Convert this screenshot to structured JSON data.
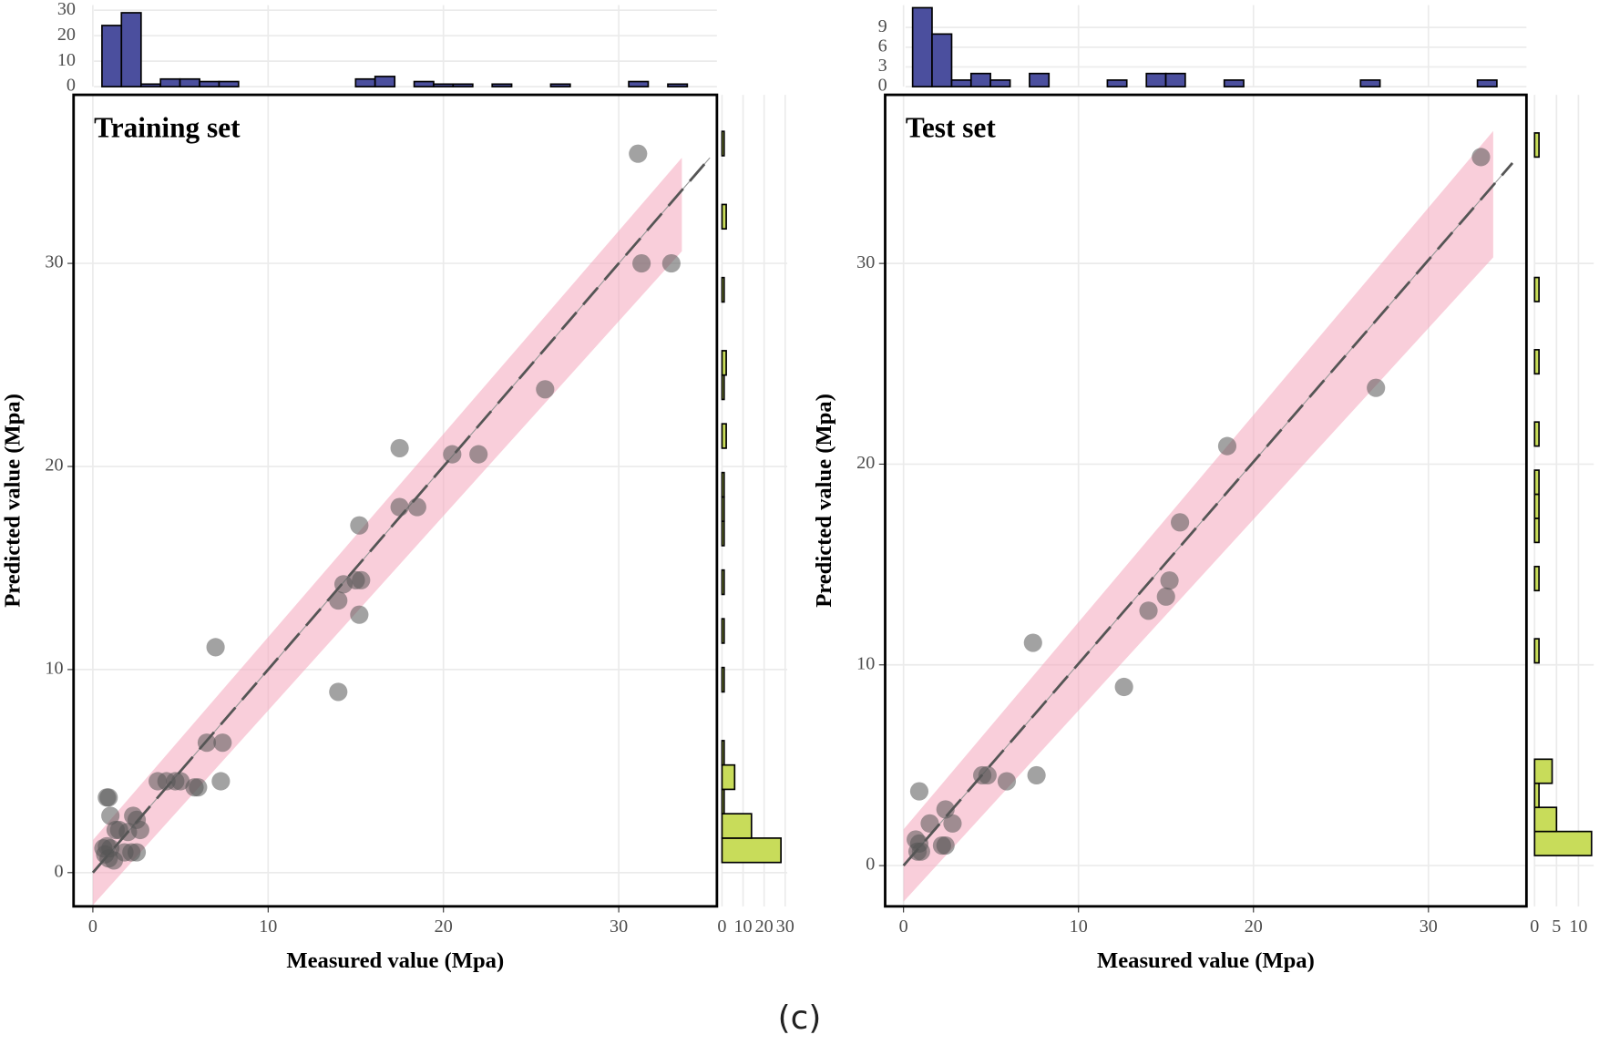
{
  "chart_data": [
    {
      "type": "scatter",
      "title": "Training set",
      "x_label": "Measured value (Mpa)",
      "y_label": "Predicted value (Mpa)",
      "point_color": "#555555",
      "x": [
        31.1,
        31.3,
        33,
        25.8,
        17.5,
        20.5,
        22,
        17.5,
        18.5,
        15.2,
        14.3,
        15,
        15.3,
        14,
        15.2,
        14,
        7,
        6.5,
        7.4,
        3.7,
        4.2,
        4.7,
        5,
        5.8,
        6,
        7.3,
        0.8,
        0.9,
        1,
        2.3,
        2.5,
        2.7,
        1.5,
        1.3,
        2,
        0.8,
        1,
        0.7,
        1.2,
        0.9,
        1.8,
        2.2,
        2.5,
        0.6
      ],
      "y": [
        35.4,
        30,
        30,
        23.8,
        20.9,
        20.6,
        20.6,
        18,
        18,
        17.1,
        14.2,
        14.4,
        14.4,
        13.4,
        12.7,
        8.9,
        11.1,
        6.4,
        6.4,
        4.5,
        4.5,
        4.5,
        4.5,
        4.2,
        4.2,
        4.5,
        3.7,
        3.7,
        2.8,
        2.8,
        2.6,
        2.1,
        2.1,
        2.1,
        2,
        1.3,
        1.2,
        0.9,
        0.6,
        0.7,
        1,
        1,
        1,
        1.2
      ],
      "xlim": [
        -1.1,
        35.6
      ],
      "ylim": [
        -1.66,
        38.3
      ],
      "xticks": [
        0,
        10,
        20,
        30
      ],
      "yticks": [
        0,
        10,
        20,
        30
      ],
      "grid": true,
      "band": {
        "x": [
          0,
          33.6
        ],
        "lower": [
          -1.6,
          30.6
        ],
        "upper": [
          1.6,
          35.2
        ],
        "color": "#f4a6bb"
      },
      "fit_line": {
        "x": [
          0,
          35.2
        ],
        "y": [
          0,
          35.2
        ]
      },
      "top_histogram": {
        "color": "#4b4f9e",
        "ylim": [
          0,
          32
        ],
        "yticks": [
          0,
          10,
          20,
          30
        ],
        "bins": [
          0.52,
          1.63,
          2.75,
          3.86,
          4.97,
          6.09,
          7.2,
          8.31,
          9.42,
          10.54,
          11.65,
          12.76,
          13.88,
          14.99,
          16.1,
          17.22,
          18.33,
          19.44,
          20.55,
          21.67,
          22.78,
          23.89,
          25.01,
          26.12,
          27.23,
          28.35,
          29.46,
          30.57,
          31.68,
          32.8,
          33.91
        ],
        "counts": [
          24,
          29,
          1,
          3,
          3,
          2,
          2,
          0,
          0,
          0,
          0,
          0,
          0,
          3,
          4,
          0,
          2,
          1,
          1,
          0,
          1,
          0,
          0,
          1,
          0,
          0,
          0,
          2,
          0,
          1
        ]
      },
      "right_histogram": {
        "color": "#c8dc5a",
        "xlim": [
          0,
          31
        ],
        "xticks": [
          0,
          10,
          20,
          30
        ],
        "bins": [
          0.5,
          1.7,
          2.9,
          4.1,
          5.3,
          6.5,
          7.7,
          8.9,
          10.1,
          11.3,
          12.5,
          13.7,
          14.9,
          16.1,
          17.3,
          18.5,
          19.7,
          20.9,
          22.1,
          23.3,
          24.5,
          25.7,
          26.9,
          28.1,
          29.3,
          30.5,
          31.7,
          32.9,
          34.1,
          35.3,
          36.5
        ],
        "counts": [
          28,
          14,
          1,
          6,
          1,
          0,
          0,
          1,
          0,
          1,
          0,
          1,
          0,
          1,
          1,
          1,
          0,
          2,
          0,
          1,
          2,
          0,
          0,
          1,
          0,
          0,
          2,
          0,
          0,
          1
        ]
      }
    },
    {
      "type": "scatter",
      "title": "Test set",
      "x_label": "Measured value (Mpa)",
      "y_label": "Predicted value (Mpa)",
      "point_color": "#555555",
      "x": [
        33,
        27,
        18.5,
        15.8,
        15.2,
        15,
        14,
        7.4,
        12.6,
        4.5,
        4.8,
        5.9,
        7.6,
        0.9,
        2.4,
        2.8,
        1.5,
        2.2,
        2.4,
        0.7,
        0.8,
        1,
        0.9
      ],
      "y": [
        35.3,
        23.8,
        20.9,
        17.1,
        14.2,
        13.4,
        12.7,
        11.1,
        8.9,
        4.5,
        4.5,
        4.2,
        4.5,
        3.7,
        2.8,
        2.1,
        2.1,
        1,
        1,
        1.3,
        0.7,
        0.7,
        1.1
      ],
      "xlim": [
        -1.05,
        35.6
      ],
      "ylim": [
        -2.03,
        38.4
      ],
      "xticks": [
        0,
        10,
        20,
        30
      ],
      "yticks": [
        0,
        10,
        20,
        30
      ],
      "grid": true,
      "band": {
        "x": [
          0,
          33.7
        ],
        "lower": [
          -1.8,
          30.3
        ],
        "upper": [
          1.8,
          36.6
        ],
        "color": "#f4a6bb"
      },
      "fit_line": {
        "x": [
          0,
          34.8
        ],
        "y": [
          0,
          35
        ]
      },
      "top_histogram": {
        "color": "#4b4f9e",
        "ylim": [
          0,
          12.4
        ],
        "yticks": [
          0,
          3,
          6,
          9
        ],
        "bins": [
          0.52,
          1.63,
          2.75,
          3.86,
          4.97,
          6.09,
          7.2,
          8.31,
          9.42,
          10.54,
          11.65,
          12.76,
          13.88,
          14.99,
          16.1,
          17.22,
          18.33,
          19.44,
          20.55,
          21.67,
          22.78,
          23.89,
          25.01,
          26.12,
          27.23,
          28.35,
          29.46,
          30.57,
          31.68,
          32.8,
          33.91
        ],
        "counts": [
          12,
          8,
          1,
          2,
          1,
          0,
          2,
          0,
          0,
          0,
          1,
          0,
          2,
          2,
          0,
          0,
          1,
          0,
          0,
          0,
          0,
          0,
          0,
          1,
          0,
          0,
          0,
          0,
          0,
          1
        ]
      },
      "right_histogram": {
        "color": "#c8dc5a",
        "xlim": [
          0,
          13.5
        ],
        "xticks": [
          0,
          5,
          10
        ],
        "bins": [
          0.5,
          1.7,
          2.9,
          4.1,
          5.3,
          6.5,
          7.7,
          8.9,
          10.1,
          11.3,
          12.5,
          13.7,
          14.9,
          16.1,
          17.3,
          18.5,
          19.7,
          20.9,
          22.1,
          23.3,
          24.5,
          25.7,
          26.9,
          28.1,
          29.3,
          30.5,
          31.7,
          32.9,
          34.1,
          35.3,
          36.5
        ],
        "counts": [
          13,
          5,
          1,
          4,
          0,
          0,
          0,
          0,
          1,
          0,
          0,
          1,
          0,
          1,
          1,
          1,
          0,
          1,
          0,
          0,
          1,
          0,
          0,
          1,
          0,
          0,
          0,
          0,
          0,
          1
        ]
      }
    }
  ],
  "caption": "(c)"
}
